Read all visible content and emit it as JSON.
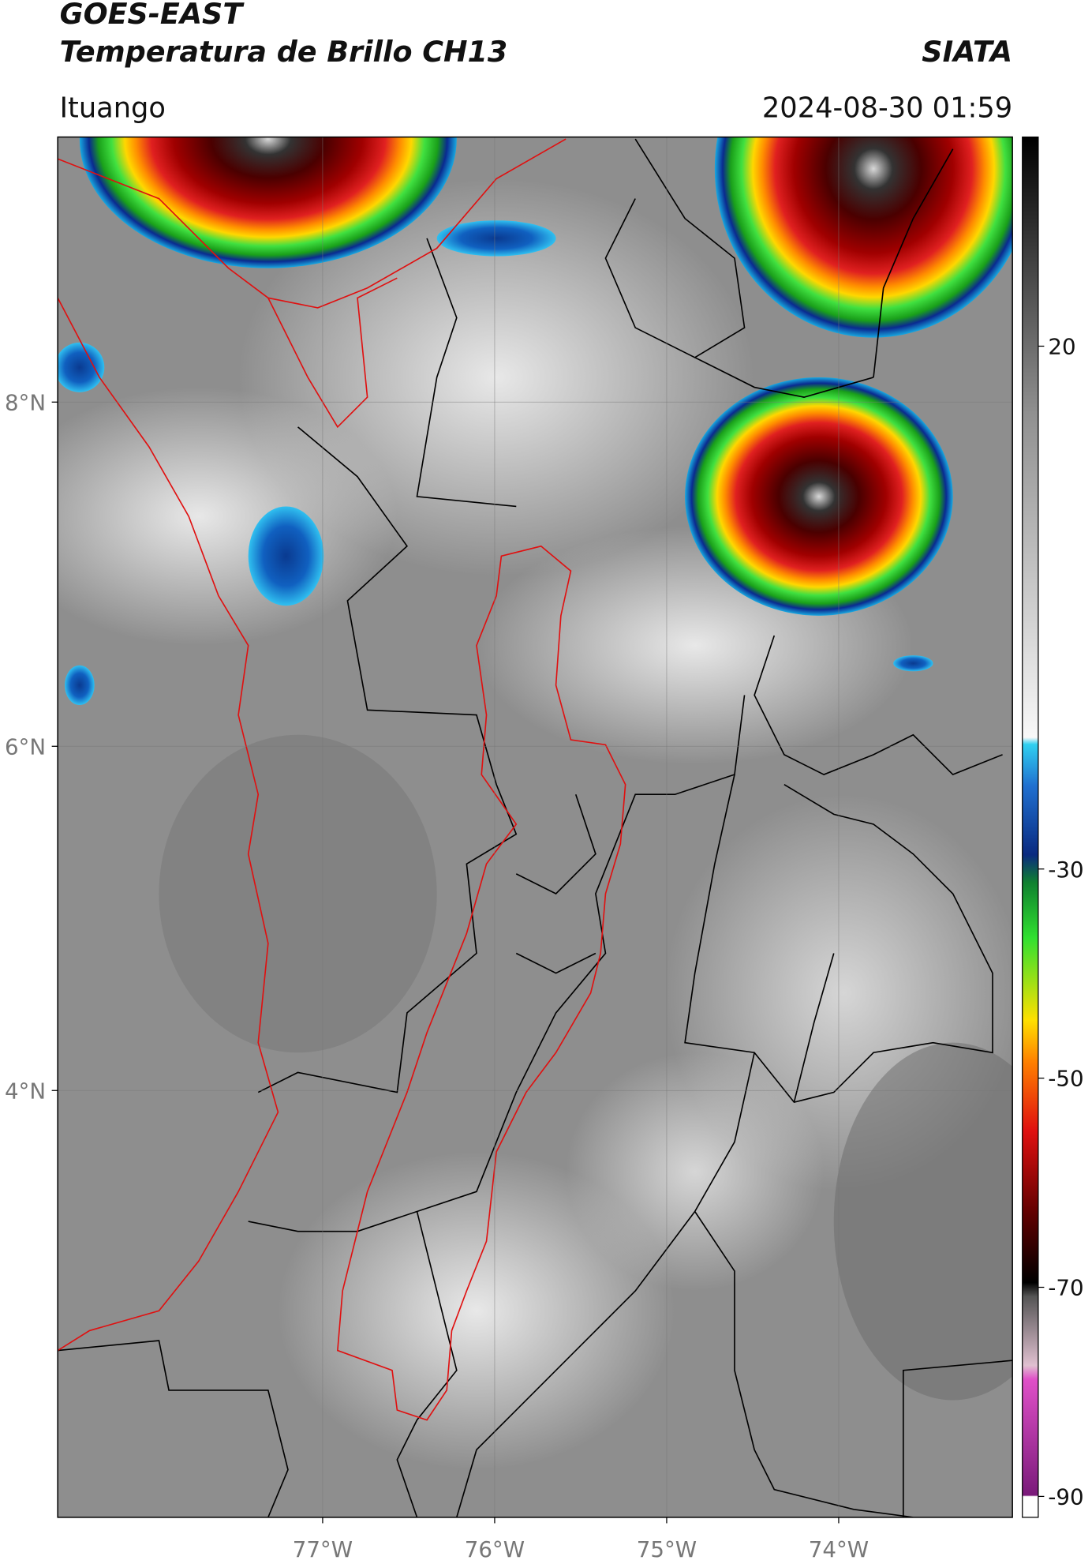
{
  "header": {
    "title": "GOES-EAST",
    "subtitle": "Temperatura de Brillo CH13",
    "brand": "SIATA",
    "region": "Ituango",
    "datetime": "2024-08-30 01:59"
  },
  "map": {
    "xlim": [
      -78.54,
      -72.99
    ],
    "ylim": [
      1.52,
      9.54
    ],
    "xticks": [
      {
        "value": -77,
        "label": "77°W"
      },
      {
        "value": -76,
        "label": "76°W"
      },
      {
        "value": -75,
        "label": "75°W"
      },
      {
        "value": -74,
        "label": "74°W"
      }
    ],
    "yticks": [
      {
        "value": 8,
        "label": "8°N"
      },
      {
        "value": 6,
        "label": "6°N"
      },
      {
        "value": 4,
        "label": "4°N"
      }
    ]
  },
  "colorbar": {
    "lim": [
      -92,
      40
    ],
    "ticks": [
      20,
      -30,
      -50,
      -70,
      -90
    ]
  }
}
